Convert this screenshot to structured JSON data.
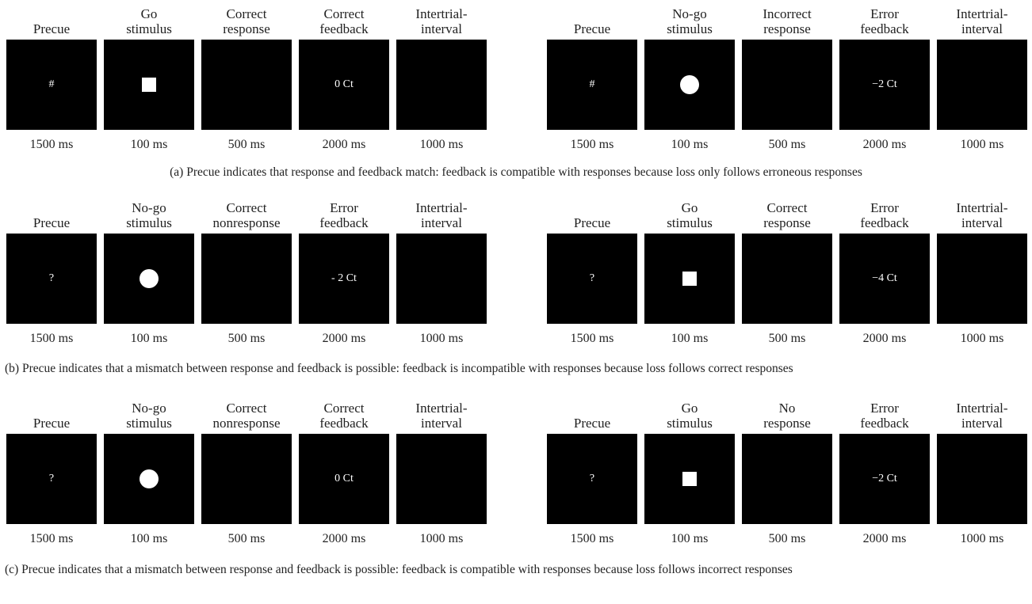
{
  "sections": [
    {
      "groups": [
        {
          "cells": [
            {
              "label": "Precue",
              "content": "text",
              "text": "#",
              "duration": "1500 ms"
            },
            {
              "label": "Go\nstimulus",
              "content": "square",
              "duration": "100 ms"
            },
            {
              "label": "Correct\nresponse",
              "content": "blank",
              "duration": "500 ms"
            },
            {
              "label": "Correct\nfeedback",
              "content": "text",
              "text": "0 Ct",
              "duration": "2000 ms"
            },
            {
              "label": "Intertrial-\ninterval",
              "content": "blank",
              "duration": "1000 ms"
            }
          ]
        },
        {
          "cells": [
            {
              "label": "Precue",
              "content": "text",
              "text": "#",
              "duration": "1500 ms"
            },
            {
              "label": "No-go\nstimulus",
              "content": "circle",
              "duration": "100 ms"
            },
            {
              "label": "Incorrect\nresponse",
              "content": "blank",
              "duration": "500 ms"
            },
            {
              "label": "Error\nfeedback",
              "content": "text",
              "text": "−2 Ct",
              "duration": "2000 ms"
            },
            {
              "label": "Intertrial-\ninterval",
              "content": "blank",
              "duration": "1000 ms"
            }
          ]
        }
      ],
      "caption": "(a)  Precue indicates that response and feedback match: feedback is compatible with responses because loss only follows erroneous responses"
    },
    {
      "groups": [
        {
          "cells": [
            {
              "label": "Precue",
              "content": "text",
              "text": "?",
              "duration": "1500 ms"
            },
            {
              "label": "No-go\nstimulus",
              "content": "circle",
              "duration": "100 ms"
            },
            {
              "label": "Correct\nnonresponse",
              "content": "blank",
              "duration": "500 ms"
            },
            {
              "label": "Error\nfeedback",
              "content": "text",
              "text": "- 2 Ct",
              "duration": "2000 ms"
            },
            {
              "label": "Intertrial-\ninterval",
              "content": "blank",
              "duration": "1000 ms"
            }
          ]
        },
        {
          "cells": [
            {
              "label": "Precue",
              "content": "text",
              "text": "?",
              "duration": "1500 ms"
            },
            {
              "label": "Go\nstimulus",
              "content": "square",
              "duration": "100 ms"
            },
            {
              "label": "Correct\nresponse",
              "content": "blank",
              "duration": "500 ms"
            },
            {
              "label": "Error\nfeedback",
              "content": "text",
              "text": "−4 Ct",
              "duration": "2000 ms"
            },
            {
              "label": "Intertrial-\ninterval",
              "content": "blank",
              "duration": "1000 ms"
            }
          ]
        }
      ],
      "caption": "(b)  Precue indicates that a mismatch between response and feedback is possible: feedback is incompatible with responses because loss follows correct responses"
    },
    {
      "groups": [
        {
          "cells": [
            {
              "label": "Precue",
              "content": "text",
              "text": "?",
              "duration": "1500 ms"
            },
            {
              "label": "No-go\nstimulus",
              "content": "circle",
              "duration": "100 ms"
            },
            {
              "label": "Correct\nnonresponse",
              "content": "blank",
              "duration": "500 ms"
            },
            {
              "label": "Correct\nfeedback",
              "content": "text",
              "text": "0 Ct",
              "duration": "2000 ms"
            },
            {
              "label": "Intertrial-\ninterval",
              "content": "blank",
              "duration": "1000 ms"
            }
          ]
        },
        {
          "cells": [
            {
              "label": "Precue",
              "content": "text",
              "text": "?",
              "duration": "1500 ms"
            },
            {
              "label": "Go\nstimulus",
              "content": "square",
              "duration": "100 ms"
            },
            {
              "label": "No\nresponse",
              "content": "blank",
              "duration": "500 ms"
            },
            {
              "label": "Error\nfeedback",
              "content": "text",
              "text": "−2 Ct",
              "duration": "2000 ms"
            },
            {
              "label": "Intertrial-\ninterval",
              "content": "blank",
              "duration": "1000 ms"
            }
          ]
        }
      ],
      "caption": "(c)  Precue indicates that a mismatch between response and feedback is possible: feedback is compatible with responses because loss follows incorrect responses"
    }
  ]
}
